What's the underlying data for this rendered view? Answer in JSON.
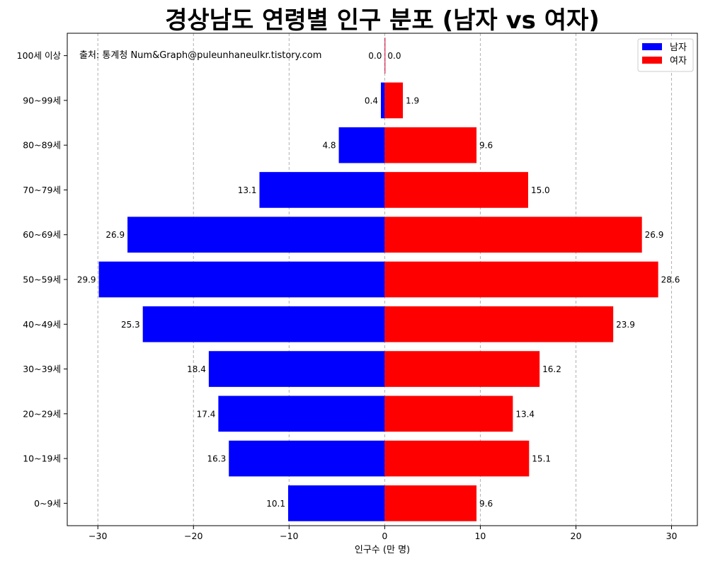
{
  "chart_data": {
    "type": "bar",
    "orientation": "horizontal",
    "title": "경상남도 연령별 인구 분포 (남자 vs 여자)",
    "xlabel": "인구수 (만 명)",
    "ylabel": "",
    "source_note": "출처: 통계청 Num&Graph@puleunhaneulkr.tistory.com",
    "xlim": [
      -33.2,
      32.7
    ],
    "xticks": [
      -30,
      -20,
      -10,
      0,
      10,
      20,
      30
    ],
    "xtick_labels": [
      "−30",
      "−20",
      "−10",
      "0",
      "10",
      "20",
      "30"
    ],
    "grid": "x",
    "legend_position": "top-right",
    "categories": [
      "0~9세",
      "10~19세",
      "20~29세",
      "30~39세",
      "40~49세",
      "50~59세",
      "60~69세",
      "70~79세",
      "80~89세",
      "90~99세",
      "100세 이상"
    ],
    "series": [
      {
        "name": "남자",
        "color": "#0000ff",
        "values": [
          -10.1,
          -16.3,
          -17.4,
          -18.4,
          -25.3,
          -29.9,
          -26.9,
          -13.1,
          -4.8,
          -0.4,
          -0.0
        ],
        "labels": [
          "10.1",
          "16.3",
          "17.4",
          "18.4",
          "25.3",
          "29.9",
          "26.9",
          "13.1",
          "4.8",
          "0.4",
          "0.0"
        ]
      },
      {
        "name": "여자",
        "color": "#ff0000",
        "values": [
          9.6,
          15.1,
          13.4,
          16.2,
          23.9,
          28.6,
          26.9,
          15.0,
          9.6,
          1.9,
          0.0
        ],
        "labels": [
          "9.6",
          "15.1",
          "13.4",
          "16.2",
          "23.9",
          "28.6",
          "26.9",
          "15.0",
          "9.6",
          "1.9",
          "0.0"
        ]
      }
    ]
  }
}
